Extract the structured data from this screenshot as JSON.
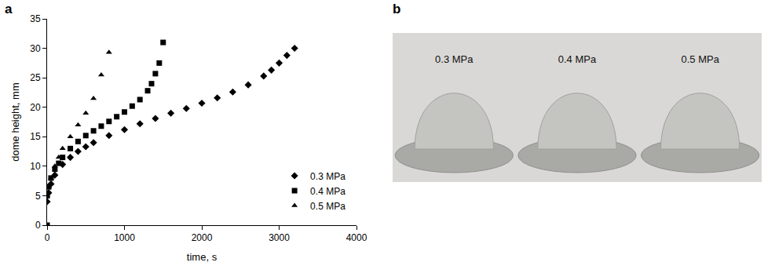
{
  "chart_data": {
    "type": "scatter",
    "panel": "a",
    "x_label": "time, s",
    "y_label": "dome height, mm",
    "xlim": [
      0,
      4000
    ],
    "xticks": [
      0,
      1000,
      2000,
      3000,
      4000
    ],
    "ylim": [
      0,
      35
    ],
    "yticks": [
      0,
      5,
      10,
      15,
      20,
      25,
      30,
      35
    ],
    "grid": false,
    "legend": "bottom-right",
    "series": [
      {
        "name": "0.3 MPa",
        "color": "#000000",
        "marker": "diamond",
        "x": [
          0,
          20,
          50,
          100,
          200,
          300,
          400,
          500,
          600,
          800,
          1000,
          1200,
          1400,
          1600,
          1800,
          2000,
          2200,
          2400,
          2600,
          2800,
          2900,
          3000,
          3100,
          3200
        ],
        "values": [
          4,
          5.5,
          7,
          8.5,
          10.3,
          11.5,
          12.5,
          13.3,
          14,
          15.2,
          16.2,
          17.2,
          18.1,
          19,
          19.8,
          20.7,
          21.6,
          22.6,
          23.8,
          25.3,
          26.3,
          27.5,
          28.8,
          30
        ]
      },
      {
        "name": "0.4 MPa",
        "color": "#000000",
        "marker": "square",
        "x": [
          0,
          0,
          20,
          50,
          100,
          150,
          200,
          300,
          400,
          500,
          600,
          700,
          800,
          900,
          1000,
          1100,
          1200,
          1300,
          1350,
          1400,
          1450,
          1500
        ],
        "values": [
          0,
          5,
          6.5,
          8,
          9.5,
          10.5,
          11.5,
          13,
          14.2,
          15.2,
          16,
          16.8,
          17.6,
          18.4,
          19.2,
          20.2,
          21.3,
          22.8,
          24,
          25.7,
          27.5,
          31
        ]
      },
      {
        "name": "0.5 MPa",
        "color": "#000000",
        "marker": "triangle",
        "x": [
          0,
          20,
          50,
          100,
          150,
          200,
          300,
          400,
          500,
          600,
          700,
          800
        ],
        "values": [
          5,
          6.5,
          8,
          10,
          11.5,
          13,
          15,
          17,
          19,
          21.5,
          25.5,
          29.3
        ]
      }
    ]
  },
  "panel_b": {
    "panel": "b",
    "labels": [
      "0.3 MPa",
      "0.4 MPa",
      "0.5 MPa"
    ]
  }
}
